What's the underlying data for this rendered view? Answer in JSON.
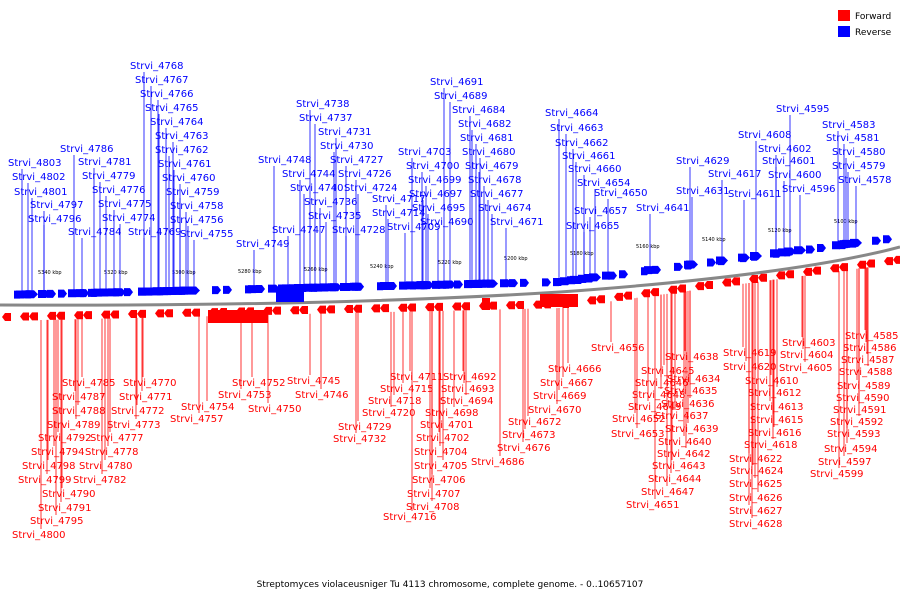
{
  "legend": {
    "items": [
      {
        "label": "Forward",
        "color": "#ff0000"
      },
      {
        "label": "Reverse",
        "color": "#0000ff"
      }
    ]
  },
  "caption": "Streptomyces violaceusniger Tu 4113 chromosome, complete genome. - 0..10657107",
  "scale_labels": [
    "5100 kbp",
    "5120 kbp",
    "5140 kbp",
    "5160 kbp",
    "5180 kbp",
    "5200 kbp",
    "5220 kbp",
    "5240 kbp",
    "5260 kbp",
    "5280 kbp",
    "5300 kbp",
    "5320 kbp",
    "5340 kbp"
  ],
  "colors": {
    "forward": "#ff0000",
    "reverse": "#0000ff",
    "backbone": "#888888"
  },
  "reverse_labels": [
    "Strvi_4768",
    "Strvi_4767",
    "Strvi_4766",
    "Strvi_4765",
    "Strvi_4764",
    "Strvi_4763",
    "Strvi_4762",
    "Strvi_4761",
    "Strvi_4760",
    "Strvi_4759",
    "Strvi_4758",
    "Strvi_4756",
    "Strvi_4755",
    "Strvi_4786",
    "Strvi_4781",
    "Strvi_4779",
    "Strvi_4776",
    "Strvi_4775",
    "Strvi_4774",
    "Strvi_4784",
    "Strvi_4769",
    "Strvi_4803",
    "Strvi_4802",
    "Strvi_4801",
    "Strvi_4797",
    "Strvi_4796",
    "Strvi_4738",
    "Strvi_4737",
    "Strvi_4731",
    "Strvi_4730",
    "Strvi_4727",
    "Strvi_4726",
    "Strvi_4724",
    "Strvi_4748",
    "Strvi_4744",
    "Strvi_4740",
    "Strvi_4736",
    "Strvi_4735",
    "Strvi_4728",
    "Strvi_4747",
    "Strvi_4749",
    "Strvi_4691",
    "Strvi_4689",
    "Strvi_4684",
    "Strvi_4682",
    "Strvi_4681",
    "Strvi_4680",
    "Strvi_4679",
    "Strvi_4678",
    "Strvi_4677",
    "Strvi_4674",
    "Strvi_4671",
    "Strvi_4703",
    "Strvi_4700",
    "Strvi_4699",
    "Strvi_4697",
    "Strvi_4695",
    "Strvi_4690",
    "Strvi_4717",
    "Strvi_4714",
    "Strvi_4709",
    "Strvi_4664",
    "Strvi_4663",
    "Strvi_4662",
    "Strvi_4661",
    "Strvi_4660",
    "Strvi_4654",
    "Strvi_4650",
    "Strvi_4657",
    "Strvi_4665",
    "Strvi_4641",
    "Strvi_4629",
    "Strvi_4631",
    "Strvi_4608",
    "Strvi_4617",
    "Strvi_4611",
    "Strvi_4602",
    "Strvi_4601",
    "Strvi_4600",
    "Strvi_4596",
    "Strvi_4595",
    "Strvi_4583",
    "Strvi_4581",
    "Strvi_4580",
    "Strvi_4579",
    "Strvi_4578"
  ],
  "forward_labels": [
    "Strvi_4785",
    "Strvi_4787",
    "Strvi_4788",
    "Strvi_4789",
    "Strvi_4792",
    "Strvi_4794",
    "Strvi_4798",
    "Strvi_4799",
    "Strvi_4790",
    "Strvi_4791",
    "Strvi_4795",
    "Strvi_4800",
    "Strvi_4770",
    "Strvi_4771",
    "Strvi_4772",
    "Strvi_4773",
    "Strvi_4777",
    "Strvi_4778",
    "Strvi_4780",
    "Strvi_4782",
    "Strvi_4752",
    "Strvi_4753",
    "Strvi_4754",
    "Strvi_4757",
    "Strvi_4750",
    "Strvi_4745",
    "Strvi_4746",
    "Strvi_4711",
    "Strvi_4715",
    "Strvi_4718",
    "Strvi_4720",
    "Strvi_4729",
    "Strvi_4732",
    "Strvi_4692",
    "Strvi_4693",
    "Strvi_4694",
    "Strvi_4698",
    "Strvi_4701",
    "Strvi_4702",
    "Strvi_4704",
    "Strvi_4705",
    "Strvi_4706",
    "Strvi_4707",
    "Strvi_4708",
    "Strvi_4716",
    "Strvi_4666",
    "Strvi_4667",
    "Strvi_4669",
    "Strvi_4670",
    "Strvi_4672",
    "Strvi_4673",
    "Strvi_4676",
    "Strvi_4686",
    "Strvi_4656",
    "Strvi_4645",
    "Strvi_4646",
    "Strvi_4648",
    "Strvi_4649",
    "Strvi_4652",
    "Strvi_4653",
    "Strvi_4638",
    "Strvi_4634",
    "Strvi_4635",
    "Strvi_4636",
    "Strvi_4637",
    "Strvi_4639",
    "Strvi_4640",
    "Strvi_4642",
    "Strvi_4643",
    "Strvi_4644",
    "Strvi_4647",
    "Strvi_4651",
    "Strvi_4619",
    "Strvi_4620",
    "Strvi_4610",
    "Strvi_4612",
    "Strvi_4613",
    "Strvi_4615",
    "Strvi_4616",
    "Strvi_4618",
    "Strvi_4622",
    "Strvi_4624",
    "Strvi_4625",
    "Strvi_4626",
    "Strvi_4627",
    "Strvi_4628",
    "Strvi_4603",
    "Strvi_4604",
    "Strvi_4605",
    "Strvi_4585",
    "Strvi_4586",
    "Strvi_4587",
    "Strvi_4588",
    "Strvi_4589",
    "Strvi_4590",
    "Strvi_4591",
    "Strvi_4592",
    "Strvi_4593",
    "Strvi_4594",
    "Strvi_4597",
    "Strvi_4599"
  ]
}
